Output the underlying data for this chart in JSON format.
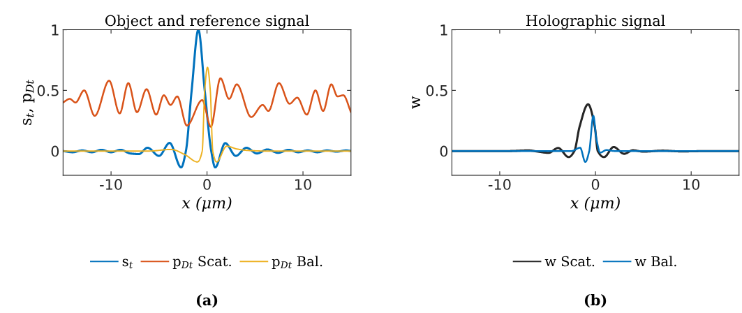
{
  "chart_data": [
    {
      "type": "line",
      "title": "Object and reference signal",
      "xlabel": "x (μm)",
      "ylabel": "s$_{t}$, p$_{Dt}$",
      "xlim": [
        -15,
        15
      ],
      "ylim": [
        -0.2,
        1
      ],
      "xticks": [
        -10,
        0,
        10
      ],
      "yticks": [
        0,
        0.5,
        1
      ],
      "grid": false,
      "legend": "bottom",
      "annotations": [
        "(a)"
      ],
      "series": [
        {
          "name": "s$_{t}$",
          "color": "#0072bd",
          "x": [
            -15,
            -14,
            -13,
            -12,
            -11,
            -10,
            -9,
            -8,
            -7.1,
            -6.2,
            -5,
            -3.9,
            -2.7,
            -2.2,
            -1.6,
            -0.9,
            -0.24,
            0.44,
            0.85,
            1.9,
            3.0,
            4.1,
            5.2,
            6.3,
            7.4,
            8.5,
            9.5,
            10.5,
            11.5,
            12.5,
            13.5,
            14.5,
            15
          ],
          "values": [
            0,
            -0.01,
            0.005,
            -0.01,
            0.01,
            -0.01,
            0.01,
            -0.02,
            -0.025,
            0.027,
            -0.04,
            0.067,
            -0.135,
            0,
            0.5,
            1.0,
            0.5,
            0,
            -0.135,
            0.065,
            -0.04,
            0.027,
            -0.02,
            0.013,
            -0.015,
            0.01,
            -0.01,
            0.005,
            -0.01,
            0.005,
            -0.005,
            0.005,
            0
          ]
        },
        {
          "name": "p$_{Dt}$ Scat.",
          "color": "#d95319",
          "x": [
            -15,
            -14.3,
            -13.7,
            -12.8,
            -11.7,
            -10.2,
            -9.1,
            -8.2,
            -7.3,
            -6.3,
            -5.3,
            -4.5,
            -3.8,
            -3.1,
            -2.1,
            -0.5,
            0.4,
            1.4,
            2.3,
            3.1,
            4.6,
            5.8,
            6.4,
            7.5,
            8.6,
            9.4,
            10.4,
            11.3,
            12.1,
            12.95,
            13.6,
            14.2,
            15
          ],
          "values": [
            0.4,
            0.43,
            0.4,
            0.5,
            0.29,
            0.58,
            0.31,
            0.56,
            0.32,
            0.51,
            0.3,
            0.46,
            0.38,
            0.45,
            0.21,
            0.42,
            0.2,
            0.6,
            0.43,
            0.55,
            0.28,
            0.38,
            0.33,
            0.56,
            0.39,
            0.44,
            0.3,
            0.5,
            0.33,
            0.55,
            0.45,
            0.46,
            0.32
          ]
        },
        {
          "name": "p$_{Dt}$ Bal.",
          "color": "#edb120",
          "x": [
            -15,
            -12,
            -9,
            -6,
            -3.75,
            -2.3,
            -1.0,
            -0.5,
            -0.24,
            0.05,
            0.34,
            0.6,
            1.0,
            2.05,
            3.1,
            4.2,
            6,
            9,
            12,
            15
          ],
          "values": [
            0,
            0,
            0,
            0,
            0.013,
            -0.03,
            -0.09,
            0,
            0.5,
            0.69,
            0.5,
            0,
            -0.09,
            0.04,
            0.017,
            0.005,
            0,
            0,
            0,
            0
          ]
        }
      ]
    },
    {
      "type": "line",
      "title": "Holographic signal",
      "xlabel": "x (μm)",
      "ylabel": "w",
      "xlim": [
        -15,
        15
      ],
      "ylim": [
        -0.2,
        1
      ],
      "xticks": [
        -10,
        0,
        10
      ],
      "yticks": [
        0,
        0.5,
        1
      ],
      "grid": false,
      "legend": "bottom",
      "annotations": [
        "(b)"
      ],
      "series": [
        {
          "name": "w Scat.",
          "color": "#262626",
          "x": [
            -15,
            -12,
            -9,
            -7,
            -6,
            -4.9,
            -3.9,
            -2.8,
            -2.2,
            -1.66,
            -0.77,
            -0.07,
            0.24,
            0.9,
            1.9,
            3.0,
            3.9,
            5,
            7,
            9,
            12,
            15
          ],
          "values": [
            0,
            0,
            0,
            0.005,
            -0.005,
            -0.015,
            0.025,
            -0.05,
            0,
            0.2,
            0.385,
            0.2,
            0,
            -0.05,
            0.033,
            -0.023,
            0.006,
            -0.005,
            0.003,
            -0.003,
            0,
            0
          ]
        },
        {
          "name": "w Bal.",
          "color": "#0072bd",
          "x": [
            -15,
            -10,
            -5,
            -2.5,
            -1.6,
            -1.06,
            -0.65,
            -0.22,
            0.1,
            0.5,
            1.15,
            2,
            5,
            10,
            15
          ],
          "values": [
            0,
            0,
            0,
            0,
            0.027,
            -0.09,
            0,
            0.29,
            0.1,
            -0.013,
            0.008,
            0,
            0,
            0,
            0
          ]
        }
      ]
    }
  ]
}
